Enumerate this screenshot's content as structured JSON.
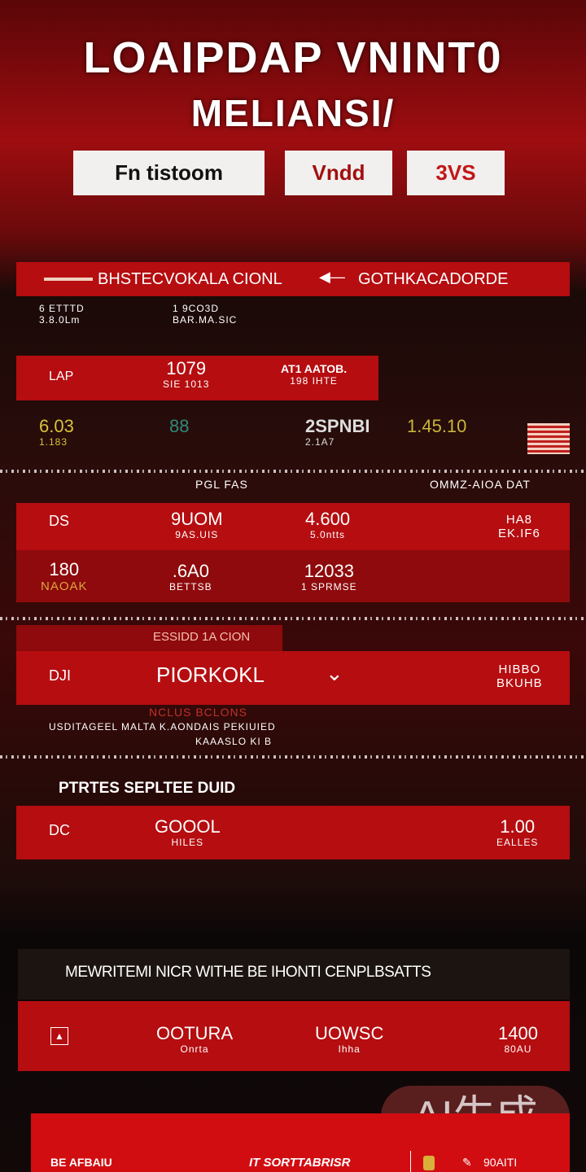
{
  "header": {
    "title_line1": "LOAIPDAP VNINT0",
    "title_line2": "MELIANSI/"
  },
  "logos": [
    {
      "label": "Fn tistoom"
    },
    {
      "label": "Vndd"
    },
    {
      "label": "3VS"
    }
  ],
  "section1": {
    "left_title": "BHSTECVOKALA CIONL",
    "right_title": "GOTHKACADORDE",
    "info": [
      {
        "value": "6  ETTTD",
        "sub": "3.8.0Lm"
      },
      {
        "value": "1  9CO3D",
        "sub": "BAR.MA.SIC"
      }
    ],
    "row": {
      "code": "LAP",
      "value": "1079",
      "sub": "SIE 1013",
      "right_value": "AT1 AATOB.",
      "right_sub": "198 IHTE"
    },
    "stats": [
      {
        "value": "6.03",
        "sub": "1.183",
        "color": "#d9c23a"
      },
      {
        "value": "88",
        "color": "#2f8a7a"
      },
      {
        "value": "2SPNBI",
        "sub": "2.1A7"
      },
      {
        "value": "1.45.10",
        "color": "#c9b53a"
      }
    ]
  },
  "section2": {
    "left_title": "PGL FAS",
    "right_title": "OMMZ-AIOA DAT",
    "row1": {
      "code": "DS",
      "c1": "9UOM",
      "c1s": "9AS.UIS",
      "c2": "4.600",
      "c2s": "5.0ntts",
      "c3": "HA8",
      "c3s": "EK.IF6"
    },
    "row2": {
      "c0": "180",
      "c0s": "NAOAK",
      "c1": ".6A0",
      "c1s": "BETTSB",
      "c2": "12033",
      "c2s": "1 SPRMSE"
    }
  },
  "section3": {
    "tab": "ESSIDD 1A CION",
    "code": "DJI",
    "select_value": "PIORKOKL",
    "right": "HIBBO",
    "right_sub": "BKUHB",
    "note_title": "NCLUS BCLONS",
    "note_line1": "USDITAGEEL MALTA K.AONDAIS PEKIUIED",
    "note_line2": "KAAASLO KI B"
  },
  "section4": {
    "title": "PTRTES SEPLTEE DUID",
    "code": "DC",
    "c1": "GOOOL",
    "c1s": "HILES",
    "c2": "1.00",
    "c2s": "EALLES"
  },
  "section5": {
    "title": "MEWRITEMI NICR WITHE BE IHONTI CENPLBSATTS",
    "c1": "OOTURA",
    "c1s": "Onrta",
    "c2": "UOWSC",
    "c2s": "Ihha",
    "c3": "1400",
    "c3s": "80AU"
  },
  "footer": {
    "left": "BE AFBAIU",
    "center": "IT SORTTABRISR",
    "right": "90AITI"
  },
  "watermark": "AI生成",
  "colors": {
    "accent": "#b50d10",
    "background": "#0c0707"
  }
}
